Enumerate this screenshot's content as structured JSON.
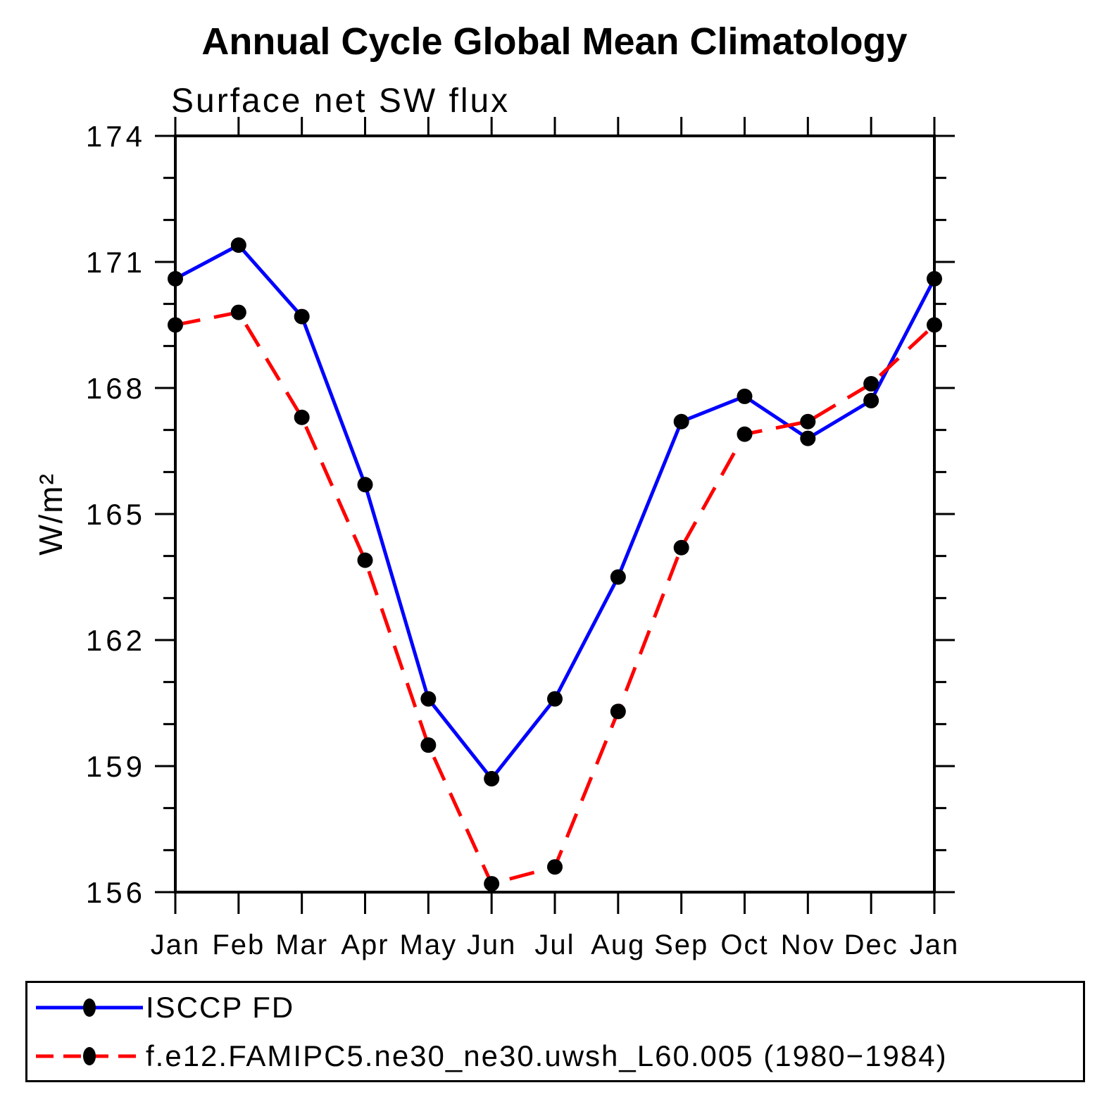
{
  "header": {
    "title": "Annual Cycle Global Mean Climatology",
    "subtitle": "Surface net SW flux"
  },
  "y_axis": {
    "label": "W/m²"
  },
  "chart_data": {
    "type": "line",
    "title": "Annual Cycle Global Mean Climatology",
    "subtitle": "Surface net SW flux",
    "ylabel": "W/m²",
    "x_categories": [
      "Jan",
      "Feb",
      "Mar",
      "Apr",
      "May",
      "Jun",
      "Jul",
      "Aug",
      "Sep",
      "Oct",
      "Nov",
      "Dec",
      "Jan"
    ],
    "ylim": [
      156,
      174
    ],
    "y_major_tick_step": 3,
    "y_minor_tick_step": 1,
    "grid": "off",
    "legend_position": "bottom",
    "axis_color": "#000000",
    "background_color": "#ffffff",
    "series": [
      {
        "name": "ISCCP FD",
        "color": "#0000ff",
        "line_style": "solid",
        "marker": "filled-circle",
        "marker_color": "#000000",
        "values": [
          170.6,
          171.4,
          169.7,
          165.7,
          160.6,
          158.7,
          160.6,
          163.5,
          167.2,
          167.8,
          166.8,
          167.7,
          170.6
        ]
      },
      {
        "name": "f.e12.FAMIPC5.ne30_ne30.uwsh_L60.005 (1980−1984)",
        "color": "#ff0000",
        "line_style": "dashed",
        "marker": "filled-circle",
        "marker_color": "#000000",
        "values": [
          169.5,
          169.8,
          167.3,
          163.9,
          159.5,
          156.2,
          156.6,
          160.3,
          164.2,
          166.9,
          167.2,
          168.1,
          169.5
        ]
      }
    ]
  }
}
